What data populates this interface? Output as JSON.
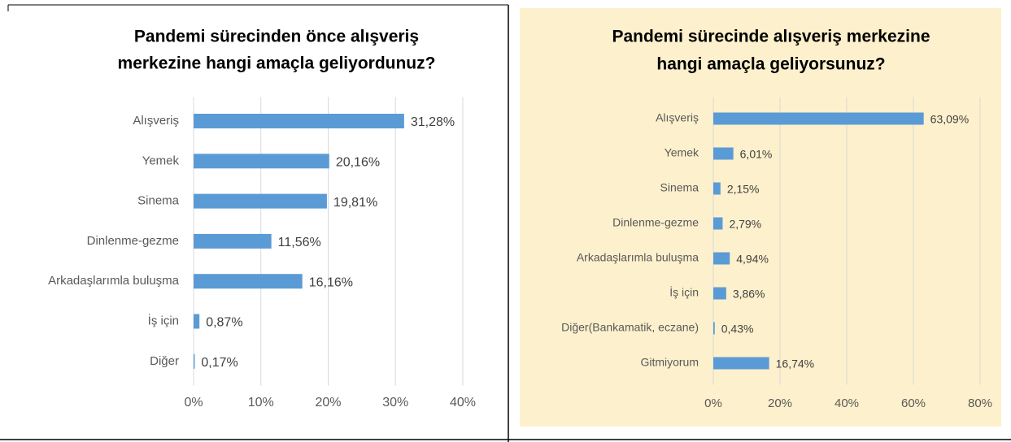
{
  "chart_data": [
    {
      "type": "bar",
      "orientation": "horizontal",
      "title": [
        "Pandemi sürecinden önce alışveriş",
        "merkezine hangi amaçla geliyordunuz?"
      ],
      "categories": [
        "Alışveriş",
        "Yemek",
        "Sinema",
        "Dinlenme-gezme",
        "Arkadaşlarımla buluşma",
        "İş için",
        "Diğer"
      ],
      "values": [
        31.28,
        20.16,
        19.81,
        11.56,
        16.16,
        0.87,
        0.17
      ],
      "value_labels": [
        "31,28%",
        "20,16%",
        "19,81%",
        "11,56%",
        "16,16%",
        "0,87%",
        "0,17%"
      ],
      "color": "#5b9bd5",
      "xlim": [
        0,
        40
      ],
      "xticks": [
        {
          "value": 0,
          "label": "0%"
        },
        {
          "value": 10,
          "label": "10%"
        },
        {
          "value": 20,
          "label": "20%"
        },
        {
          "value": 30,
          "label": "30%"
        },
        {
          "value": 40,
          "label": "40%"
        }
      ],
      "grid": true
    },
    {
      "type": "bar",
      "orientation": "horizontal",
      "title": [
        "Pandemi sürecinde alışveriş merkezine",
        "hangi amaçla geliyorsunuz?"
      ],
      "categories": [
        "Alışveriş",
        "Yemek",
        "Sinema",
        "Dinlenme-gezme",
        "Arkadaşlarımla buluşma",
        "İş için",
        "Diğer(Bankamatik, eczane)",
        "Gitmiyorum"
      ],
      "values": [
        63.09,
        6.01,
        2.15,
        2.79,
        4.94,
        3.86,
        0.43,
        16.74
      ],
      "value_labels": [
        "63,09%",
        "6,01%",
        "2,15%",
        "2,79%",
        "4,94%",
        "3,86%",
        "0,43%",
        "16,74%"
      ],
      "color": "#5b9bd5",
      "xlim": [
        0,
        80
      ],
      "xticks": [
        {
          "value": 0,
          "label": "0%"
        },
        {
          "value": 20,
          "label": "20%"
        },
        {
          "value": 40,
          "label": "40%"
        },
        {
          "value": 60,
          "label": "60%"
        },
        {
          "value": 80,
          "label": "80%"
        }
      ],
      "grid": true
    }
  ]
}
